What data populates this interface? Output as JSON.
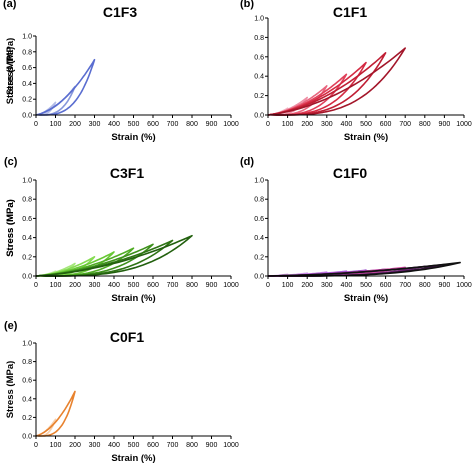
{
  "chart_data": [
    {
      "type": "line",
      "panel_label": "(a)",
      "title": "C1F3",
      "xlabel": "Strain (%)",
      "ylabel": "Stress (MPa)",
      "xlim": [
        0,
        1000
      ],
      "ylim": [
        0,
        1.0
      ],
      "xticks": [
        "0",
        "100",
        "200",
        "300",
        "400",
        "500",
        "600",
        "700",
        "800",
        "900",
        "1000"
      ],
      "yticks": [
        "0.0",
        "0.2",
        "0.4",
        "0.6",
        "0.8",
        "1.0"
      ],
      "grid": false,
      "series": [
        {
          "color": "#b4bde8",
          "max_strain": 100,
          "peak_stress": 0.16
        },
        {
          "color": "#8797db",
          "max_strain": 200,
          "peak_stress": 0.36
        },
        {
          "color": "#5a6dd0",
          "max_strain": 300,
          "peak_stress": 0.7
        }
      ]
    },
    {
      "type": "line",
      "panel_label": "(b)",
      "title": "C1F1",
      "xlabel": "Strain (%)",
      "ylabel": "Stress (MPa)",
      "xlim": [
        0,
        1000
      ],
      "ylim": [
        0,
        1.0
      ],
      "xticks": [
        "0",
        "100",
        "200",
        "300",
        "400",
        "500",
        "600",
        "700",
        "800",
        "900",
        "1000"
      ],
      "yticks": [
        "0.0",
        "0.2",
        "0.4",
        "0.6",
        "0.8",
        "1.0"
      ],
      "grid": false,
      "series": [
        {
          "color": "#f4b4c4",
          "max_strain": 100,
          "peak_stress": 0.07
        },
        {
          "color": "#ee8fa5",
          "max_strain": 200,
          "peak_stress": 0.18
        },
        {
          "color": "#e8667f",
          "max_strain": 300,
          "peak_stress": 0.3
        },
        {
          "color": "#e0405a",
          "max_strain": 400,
          "peak_stress": 0.42
        },
        {
          "color": "#d42a42",
          "max_strain": 500,
          "peak_stress": 0.54
        },
        {
          "color": "#c01e34",
          "max_strain": 600,
          "peak_stress": 0.64
        },
        {
          "color": "#a3162a",
          "max_strain": 700,
          "peak_stress": 0.69
        }
      ]
    },
    {
      "type": "line",
      "panel_label": "(c)",
      "title": "C3F1",
      "xlabel": "Strain (%)",
      "ylabel": "Stress (MPa)",
      "xlim": [
        0,
        1000
      ],
      "ylim": [
        0,
        1.0
      ],
      "xticks": [
        "0",
        "100",
        "200",
        "300",
        "400",
        "500",
        "600",
        "700",
        "800",
        "900",
        "1000"
      ],
      "yticks": [
        "0.0",
        "0.2",
        "0.4",
        "0.6",
        "0.8",
        "1.0"
      ],
      "grid": false,
      "series": [
        {
          "color": "#c5f0a8",
          "max_strain": 100,
          "peak_stress": 0.05
        },
        {
          "color": "#a6e77d",
          "max_strain": 200,
          "peak_stress": 0.13
        },
        {
          "color": "#86dc52",
          "max_strain": 300,
          "peak_stress": 0.2
        },
        {
          "color": "#68c834",
          "max_strain": 400,
          "peak_stress": 0.25
        },
        {
          "color": "#50ac24",
          "max_strain": 500,
          "peak_stress": 0.29
        },
        {
          "color": "#3e901c",
          "max_strain": 600,
          "peak_stress": 0.33
        },
        {
          "color": "#2e7414",
          "max_strain": 700,
          "peak_stress": 0.37
        },
        {
          "color": "#22600e",
          "max_strain": 800,
          "peak_stress": 0.42
        }
      ]
    },
    {
      "type": "line",
      "panel_label": "(d)",
      "title": "C1F0",
      "xlabel": "Strain (%)",
      "ylabel": "Stress (MPa)",
      "xlim": [
        0,
        1000
      ],
      "ylim": [
        0,
        1.0
      ],
      "xticks": [
        "0",
        "100",
        "200",
        "300",
        "400",
        "500",
        "600",
        "700",
        "800",
        "900",
        "1000"
      ],
      "yticks": [
        "0.0",
        "0.2",
        "0.4",
        "0.6",
        "0.8",
        "1.0"
      ],
      "grid": false,
      "series": [
        {
          "color": "#e7c4f2",
          "max_strain": 100,
          "peak_stress": 0.02
        },
        {
          "color": "#d8a4ec",
          "max_strain": 200,
          "peak_stress": 0.03
        },
        {
          "color": "#c884e6",
          "max_strain": 300,
          "peak_stress": 0.04
        },
        {
          "color": "#b266dc",
          "max_strain": 400,
          "peak_stress": 0.05
        },
        {
          "color": "#9a4ccc",
          "max_strain": 500,
          "peak_stress": 0.06
        },
        {
          "color": "#8238b4",
          "max_strain": 600,
          "peak_stress": 0.07
        },
        {
          "color": "#d24aa2",
          "max_strain": 700,
          "peak_stress": 0.09
        },
        {
          "color": "#7a2c80",
          "max_strain": 800,
          "peak_stress": 0.1
        },
        {
          "color": "#3a1440",
          "max_strain": 900,
          "peak_stress": 0.12
        },
        {
          "color": "#111111",
          "max_strain": 980,
          "peak_stress": 0.14
        }
      ]
    },
    {
      "type": "line",
      "panel_label": "(e)",
      "title": "C0F1",
      "xlabel": "Strain (%)",
      "ylabel": "Stress (MPa)",
      "xlim": [
        0,
        1000
      ],
      "ylim": [
        0,
        1.0
      ],
      "xticks": [
        "0",
        "100",
        "200",
        "300",
        "400",
        "500",
        "600",
        "700",
        "800",
        "900",
        "1000"
      ],
      "yticks": [
        "0.0",
        "0.2",
        "0.4",
        "0.6",
        "0.8",
        "1.0"
      ],
      "grid": false,
      "series": [
        {
          "color": "#f9d0aa",
          "max_strain": 100,
          "peak_stress": 0.18
        },
        {
          "color": "#e8822e",
          "max_strain": 200,
          "peak_stress": 0.48
        }
      ]
    }
  ]
}
